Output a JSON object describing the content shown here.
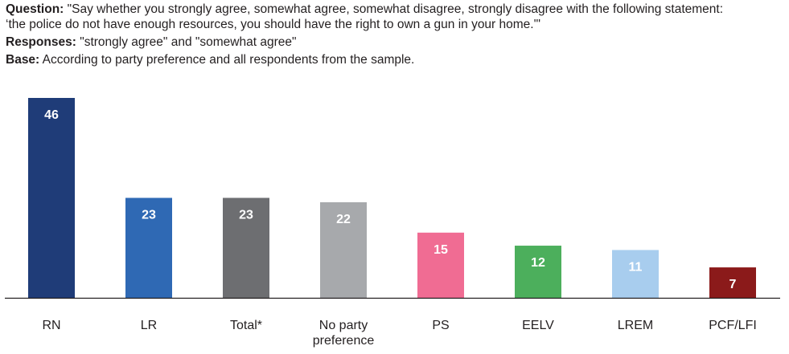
{
  "header": {
    "question_label": "Question:",
    "question_line1": "\"Say whether you strongly agree, somewhat agree, somewhat disagree, strongly disagree with the following statement:",
    "question_line2": "‘the police do not have enough resources, you should have the right to own a gun in your home.'\"",
    "responses_label": "Responses:",
    "responses_text": "\"strongly agree\" and \"somewhat agree\"",
    "base_label": "Base:",
    "base_text": "According to party preference and all respondents from the sample."
  },
  "chart_data": {
    "type": "bar",
    "title": "",
    "xlabel": "",
    "ylabel": "",
    "ylim": [
      0,
      46
    ],
    "grid": false,
    "legend": "none",
    "categories": [
      "RN",
      "LR",
      "Total*",
      "No party preference",
      "PS",
      "EELV",
      "LREM",
      "PCF/LFI"
    ],
    "category_lines": [
      [
        "RN"
      ],
      [
        "LR"
      ],
      [
        "Total*"
      ],
      [
        "No party",
        "preference"
      ],
      [
        "PS"
      ],
      [
        "EELV"
      ],
      [
        "LREM"
      ],
      [
        "PCF/LFI"
      ]
    ],
    "values": [
      46,
      23,
      23,
      22,
      15,
      12,
      11,
      7
    ],
    "colors": [
      "#1f3c78",
      "#2f69b4",
      "#6d6e71",
      "#a7a9ac",
      "#f06c93",
      "#4caf5c",
      "#a8cdee",
      "#8b1a1a"
    ],
    "value_label_color": "#ffffff",
    "axis_color": "#231f20"
  }
}
